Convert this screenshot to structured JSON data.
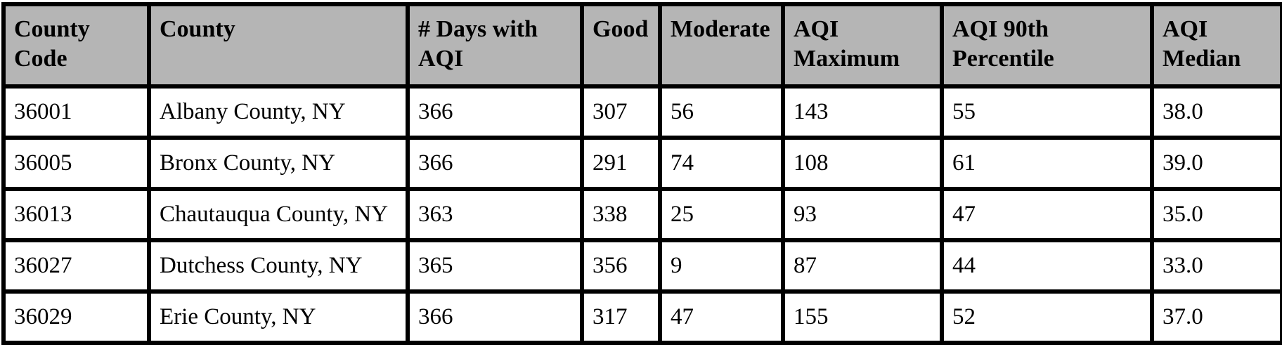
{
  "table": {
    "name": "county-aqi-summary-table",
    "columns": [
      {
        "label": "County\nCode"
      },
      {
        "label": "County"
      },
      {
        "label": "# Days with\nAQI"
      },
      {
        "label": "Good"
      },
      {
        "label": "Moderate"
      },
      {
        "label": "AQI\nMaximum"
      },
      {
        "label": "AQI 90th\nPercentile"
      },
      {
        "label": "AQI\nMedian"
      }
    ],
    "rows": [
      {
        "cells": [
          "36001",
          "Albany County, NY",
          "366",
          "307",
          "56",
          "143",
          "55",
          "38.0"
        ]
      },
      {
        "cells": [
          "36005",
          "Bronx County, NY",
          "366",
          "291",
          "74",
          "108",
          "61",
          "39.0"
        ]
      },
      {
        "cells": [
          "36013",
          "Chautauqua County, NY",
          "363",
          "338",
          "25",
          "93",
          "47",
          "35.0"
        ]
      },
      {
        "cells": [
          "36027",
          "Dutchess County, NY",
          "365",
          "356",
          "9",
          "87",
          "44",
          "33.0"
        ]
      },
      {
        "cells": [
          "36029",
          "Erie County, NY",
          "366",
          "317",
          "47",
          "155",
          "52",
          "37.0"
        ]
      }
    ]
  },
  "colors": {
    "header_bg": "#b5b5b5",
    "border": "#000000",
    "row_bg": "#ffffff",
    "text": "#000000"
  }
}
